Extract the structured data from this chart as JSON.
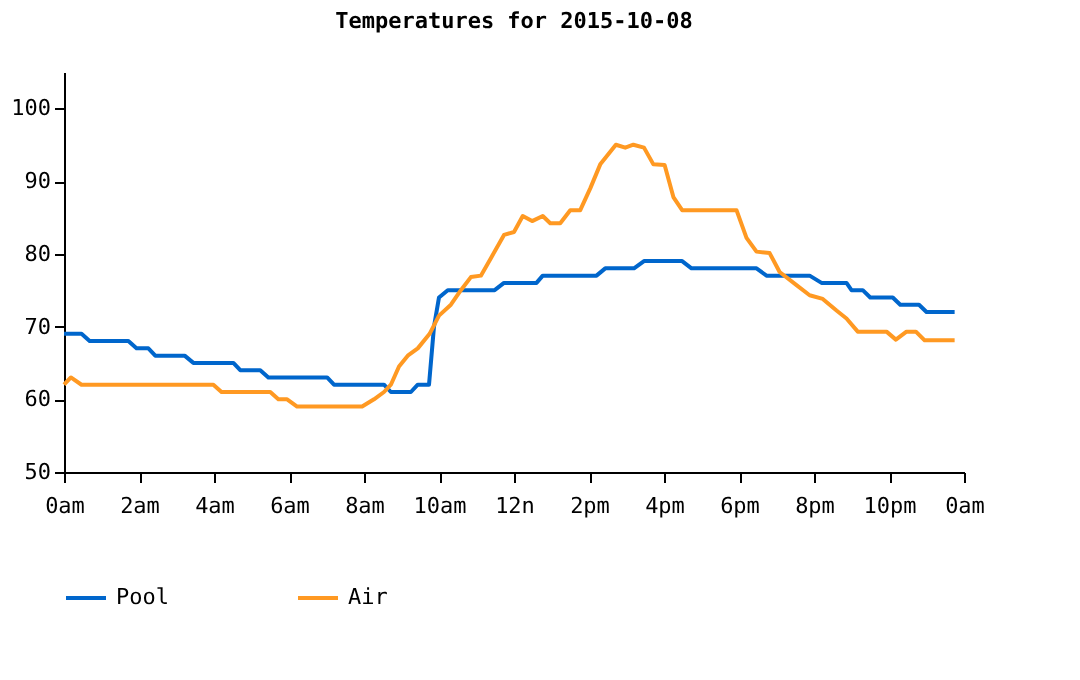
{
  "chart_data": {
    "type": "line",
    "title": "Temperatures for 2015-10-08",
    "xlim": [
      "2015-10-08T00:00",
      "2015-10-09T00:00"
    ],
    "xticks": [
      {
        "value": "2015-10-08T00:00",
        "label": "0am"
      },
      {
        "value": "2015-10-08T02:00",
        "label": "2am"
      },
      {
        "value": "2015-10-08T04:00",
        "label": "4am"
      },
      {
        "value": "2015-10-08T06:00",
        "label": "6am"
      },
      {
        "value": "2015-10-08T08:00",
        "label": "8am"
      },
      {
        "value": "2015-10-08T10:00",
        "label": "10am"
      },
      {
        "value": "2015-10-08T12:00",
        "label": "12n"
      },
      {
        "value": "2015-10-08T14:00",
        "label": "2pm"
      },
      {
        "value": "2015-10-08T16:00",
        "label": "4pm"
      },
      {
        "value": "2015-10-08T18:00",
        "label": "6pm"
      },
      {
        "value": "2015-10-08T20:00",
        "label": "8pm"
      },
      {
        "value": "2015-10-08T22:00",
        "label": "10pm"
      },
      {
        "value": "2015-10-09T00:00",
        "label": "0am"
      }
    ],
    "ylim": [
      50,
      105
    ],
    "yticks": [
      50,
      60,
      70,
      80,
      90,
      100
    ],
    "grid": false,
    "legend": "bottom",
    "marker": "none",
    "line_style": "solid",
    "series": [
      {
        "name": "Pool",
        "color": "#0066cc",
        "x": [
          "2015-10-08T00:00",
          "2015-10-08T00:28",
          "2015-10-08T00:41",
          "2015-10-08T01:43",
          "2015-10-08T01:56",
          "2015-10-08T02:15",
          "2015-10-08T02:26",
          "2015-10-08T03:13",
          "2015-10-08T03:27",
          "2015-10-08T04:31",
          "2015-10-08T04:42",
          "2015-10-08T05:14",
          "2015-10-08T05:27",
          "2015-10-08T07:01",
          "2015-10-08T07:12",
          "2015-10-08T08:32",
          "2015-10-08T08:43",
          "2015-10-08T09:15",
          "2015-10-08T09:26",
          "2015-10-08T09:44",
          "2015-10-08T09:52",
          "2015-10-08T10:00",
          "2015-10-08T10:14",
          "2015-10-08T11:29",
          "2015-10-08T11:44",
          "2015-10-08T12:36",
          "2015-10-08T12:46",
          "2015-10-08T14:12",
          "2015-10-08T14:26",
          "2015-10-08T15:12",
          "2015-10-08T15:28",
          "2015-10-08T16:29",
          "2015-10-08T16:44",
          "2015-10-08T18:28",
          "2015-10-08T18:44",
          "2015-10-08T19:53",
          "2015-10-08T20:12",
          "2015-10-08T20:52",
          "2015-10-08T21:00",
          "2015-10-08T21:18",
          "2015-10-08T21:30",
          "2015-10-08T22:06",
          "2015-10-08T22:18",
          "2015-10-08T22:48",
          "2015-10-08T23:00",
          "2015-10-08T23:45"
        ],
        "values": [
          69,
          69,
          68,
          68,
          67,
          67,
          66,
          66,
          65,
          65,
          64,
          64,
          63,
          63,
          62,
          62,
          61,
          61,
          62,
          62,
          70,
          74,
          75,
          75,
          76,
          76,
          77,
          77,
          78,
          78,
          79,
          79,
          78,
          78,
          77,
          77,
          76,
          76,
          75,
          75,
          74,
          74,
          73,
          73,
          72,
          72
        ]
      },
      {
        "name": "Air",
        "color": "#ff9922",
        "x": [
          "2015-10-08T00:00",
          "2015-10-08T00:11",
          "2015-10-08T00:28",
          "2015-10-08T03:59",
          "2015-10-08T04:12",
          "2015-10-08T05:30",
          "2015-10-08T05:43",
          "2015-10-08T05:57",
          "2015-10-08T06:13",
          "2015-10-08T07:57",
          "2015-10-08T08:16",
          "2015-10-08T08:32",
          "2015-10-08T08:43",
          "2015-10-08T08:56",
          "2015-10-08T09:10",
          "2015-10-08T09:26",
          "2015-10-08T09:45",
          "2015-10-08T10:00",
          "2015-10-08T10:19",
          "2015-10-08T10:35",
          "2015-10-08T10:51",
          "2015-10-08T11:07",
          "2015-10-08T11:23",
          "2015-10-08T11:44",
          "2015-10-08T12:00",
          "2015-10-08T12:14",
          "2015-10-08T12:29",
          "2015-10-08T12:46",
          "2015-10-08T12:58",
          "2015-10-08T13:14",
          "2015-10-08T13:30",
          "2015-10-08T13:46",
          "2015-10-08T14:02",
          "2015-10-08T14:18",
          "2015-10-08T14:43",
          "2015-10-08T14:58",
          "2015-10-08T15:11",
          "2015-10-08T15:28",
          "2015-10-08T15:43",
          "2015-10-08T16:01",
          "2015-10-08T16:15",
          "2015-10-08T16:29",
          "2015-10-08T17:56",
          "2015-10-08T18:12",
          "2015-10-08T18:28",
          "2015-10-08T18:49",
          "2015-10-08T19:05",
          "2015-10-08T19:32",
          "2015-10-08T19:53",
          "2015-10-08T20:14",
          "2015-10-08T20:36",
          "2015-10-08T20:52",
          "2015-10-08T21:10",
          "2015-10-08T21:56",
          "2015-10-08T22:11",
          "2015-10-08T22:28",
          "2015-10-08T22:43",
          "2015-10-08T22:57",
          "2015-10-08T23:45"
        ],
        "values": [
          62,
          63,
          62,
          62,
          61,
          61,
          60,
          60,
          59,
          59,
          60,
          61,
          62,
          64.5,
          66,
          67,
          69,
          71.5,
          73,
          75,
          76.8,
          77,
          79.4,
          82.6,
          83,
          85.2,
          84.5,
          85.2,
          84.2,
          84.2,
          86,
          86,
          89,
          92.3,
          95,
          94.6,
          95,
          94.6,
          92.3,
          92.2,
          87.8,
          86,
          86,
          82.2,
          80.3,
          80.1,
          77.5,
          75.7,
          74.3,
          73.8,
          72.2,
          71.1,
          69.3,
          69.3,
          68.2,
          69.3,
          69.3,
          68.1,
          68.1
        ]
      }
    ]
  }
}
